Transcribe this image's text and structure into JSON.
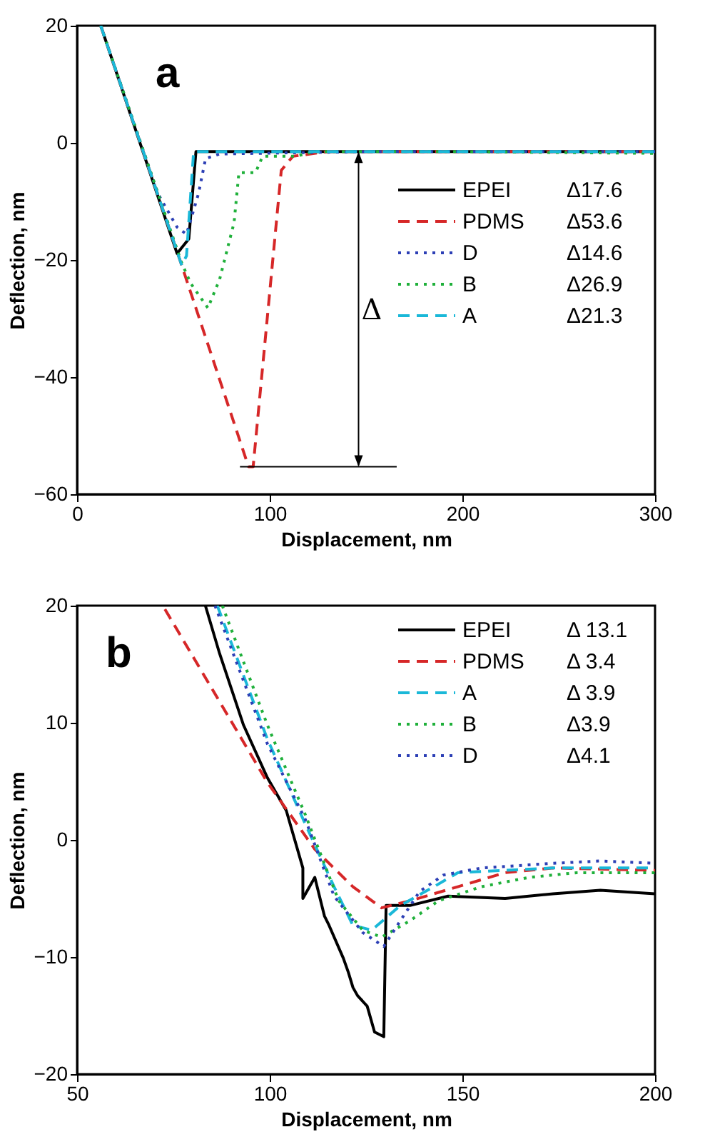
{
  "chart_data": [
    {
      "type": "line",
      "title": "a",
      "xlabel": "Displacement, nm",
      "ylabel": "Deflection, nm",
      "xlim": [
        0,
        300
      ],
      "xticks": [
        0,
        100,
        200,
        300
      ],
      "ylim": [
        -60,
        20
      ],
      "yticks": [
        -60,
        -40,
        -20,
        0,
        20
      ],
      "grid": false,
      "legend": "right",
      "series": [
        {
          "name": "EPEI",
          "color": "#000000",
          "line_style": "solid",
          "x": [
            12.3,
            51.9,
            58,
            61.7,
            100,
            200,
            300
          ],
          "values": [
            20,
            -18.9,
            -16.4,
            -1.5,
            -1.5,
            -1.5,
            -1.5
          ]
        },
        {
          "name": "PDMS",
          "color": "#d62728",
          "line_style": "dashed",
          "x": [
            12.3,
            54.3,
            89,
            91.4,
            106,
            112,
            130,
            200,
            300
          ],
          "values": [
            20,
            -20.9,
            -55.3,
            -55.3,
            -4.7,
            -2.3,
            -1.5,
            -1.5,
            -1.5
          ]
        },
        {
          "name": "D",
          "color": "#2c3fb5",
          "line_style": "dotted",
          "x": [
            12.3,
            42,
            51.9,
            56.8,
            63,
            66.7,
            74,
            150,
            300
          ],
          "values": [
            20,
            -8.7,
            -14.4,
            -15.6,
            -8.7,
            -2.7,
            -1.9,
            -1.5,
            -1.5
          ]
        },
        {
          "name": "B",
          "color": "#1fb03a",
          "line_style": "dotted",
          "x": [
            12.3,
            54.3,
            59,
            67.9,
            74,
            81.5,
            84,
            92.6,
            96.3,
            113.6,
            123,
            200,
            300
          ],
          "values": [
            20,
            -20.5,
            -24,
            -28.2,
            -23.3,
            -13.6,
            -5.1,
            -5.1,
            -2.3,
            -2.3,
            -1.5,
            -1.5,
            -1.8
          ]
        },
        {
          "name": "A",
          "color": "#1ab8d8",
          "line_style": "dashed",
          "x": [
            12.3,
            54.3,
            56.8,
            60.5,
            100,
            200,
            300
          ],
          "values": [
            20,
            -20.9,
            -19.3,
            -1.5,
            -1.5,
            -1.5,
            -1.5
          ]
        }
      ],
      "annotations": [
        "Δ17.6",
        "Δ53.6",
        "Δ14.6",
        "Δ26.9",
        "Δ21.3",
        "Δ"
      ]
    },
    {
      "type": "line",
      "title": "b",
      "xlabel": "Displacement, nm",
      "ylabel": "Deflection, nm",
      "xlim": [
        50,
        200
      ],
      "xticks": [
        50,
        100,
        150,
        200
      ],
      "ylim": [
        -20,
        20
      ],
      "yticks": [
        -20,
        -10,
        0,
        10,
        20
      ],
      "grid": false,
      "legend": "top right",
      "series": [
        {
          "name": "EPEI",
          "color": "#000000",
          "line_style": "solid",
          "x": [
            83.3,
            87,
            93.2,
            99.4,
            104.3,
            108.6,
            108.6,
            111.7,
            114.2,
            115.4,
            119.1,
            120.4,
            121.6,
            122.8,
            125.3,
            127.2,
            129.6,
            130.2,
            136.4,
            146.3,
            161.1,
            173.5,
            185.8,
            200
          ],
          "values": [
            20,
            15.9,
            9.8,
            5.3,
            2.5,
            -2.4,
            -5,
            -3.2,
            -6.5,
            -7.3,
            -10.1,
            -11.3,
            -12.6,
            -13.3,
            -14.2,
            -16.4,
            -16.8,
            -5.6,
            -5.6,
            -4.8,
            -5,
            -4.6,
            -4.3,
            -4.6
          ]
        },
        {
          "name": "PDMS",
          "color": "#d62728",
          "line_style": "dashed",
          "x": [
            72.8,
            99.4,
            111.7,
            121.6,
            129,
            136.4,
            148.8,
            161.1,
            173.5,
            200
          ],
          "values": [
            19.7,
            4.9,
            -0.8,
            -4,
            -5.8,
            -5.2,
            -4,
            -2.8,
            -2.4,
            -2.6
          ]
        },
        {
          "name": "A",
          "color": "#1ab8d8",
          "line_style": "dashed",
          "x": [
            86.4,
            99.4,
            109.3,
            116.7,
            121.6,
            126.5,
            133.9,
            142.6,
            148.8,
            161.1,
            173.5,
            200
          ],
          "values": [
            20,
            8.6,
            1.3,
            -4,
            -7.3,
            -7.7,
            -5.6,
            -4,
            -2.8,
            -2.6,
            -2.4,
            -2.4
          ]
        },
        {
          "name": "B",
          "color": "#1fb03a",
          "line_style": "dotted",
          "x": [
            87.7,
            99.4,
            109.3,
            117.9,
            124.1,
            129,
            136.4,
            143.8,
            154.9,
            167.3,
            179.6,
            200
          ],
          "values": [
            20,
            9.8,
            2.1,
            -5.2,
            -7.7,
            -8.3,
            -6.9,
            -5.2,
            -4,
            -3.2,
            -2.8,
            -2.8
          ]
        },
        {
          "name": "D",
          "color": "#2c3fb5",
          "line_style": "dotted",
          "x": [
            85.8,
            99.4,
            109.3,
            116.7,
            124.1,
            129.6,
            133.9,
            138.9,
            145.1,
            154.9,
            173.5,
            185.8,
            200
          ],
          "values": [
            20,
            8.2,
            1.7,
            -4.8,
            -7.9,
            -9.1,
            -6.9,
            -4.4,
            -3,
            -2.4,
            -2,
            -1.8,
            -2
          ]
        }
      ],
      "annotations": [
        "Δ 13.1",
        "Δ 3.4",
        "Δ 3.9",
        "Δ3.9",
        "Δ4.1"
      ]
    }
  ]
}
